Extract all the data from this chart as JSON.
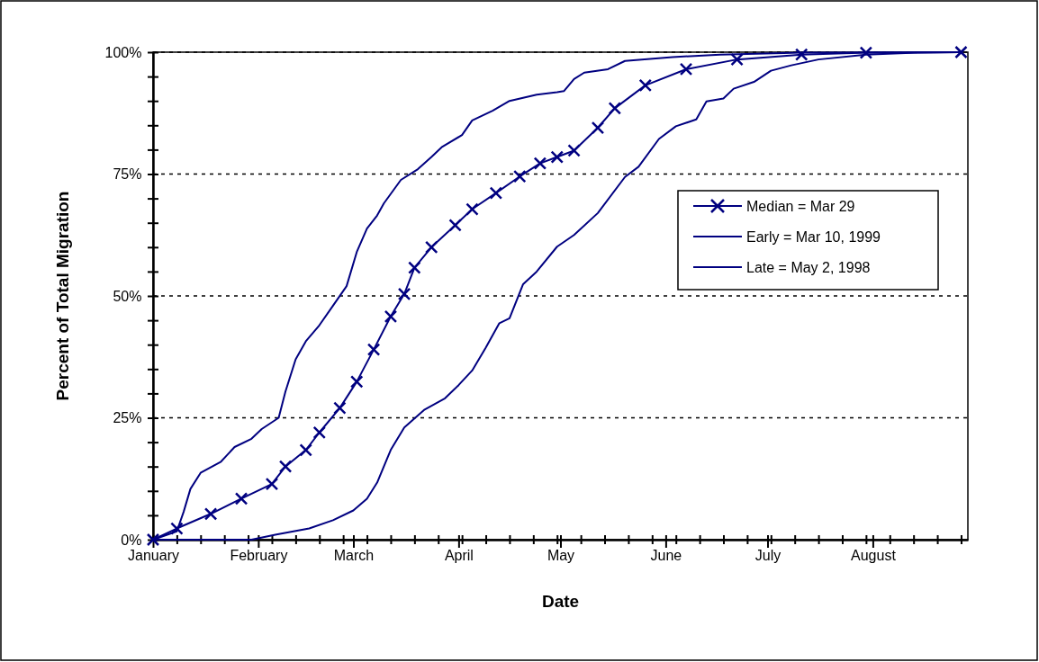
{
  "chart_data": {
    "type": "line",
    "xlabel": "Date",
    "ylabel": "Percent of Total Migration",
    "xlim": [
      "--01-01",
      "--08-29"
    ],
    "ylim": [
      0,
      100
    ],
    "xticks": [
      {
        "value": "--01-01",
        "label": "January"
      },
      {
        "value": "--01-08",
        "label": null
      },
      {
        "value": "--01-15",
        "label": null
      },
      {
        "value": "--01-22",
        "label": null
      },
      {
        "value": "--01-29",
        "label": null
      },
      {
        "value": "--02-01",
        "label": "February"
      },
      {
        "value": "--02-05",
        "label": null
      },
      {
        "value": "--02-12",
        "label": null
      },
      {
        "value": "--02-19",
        "label": null
      },
      {
        "value": "--02-26",
        "label": null
      },
      {
        "value": "--03-01",
        "label": "March"
      },
      {
        "value": "--03-05",
        "label": null
      },
      {
        "value": "--03-12",
        "label": null
      },
      {
        "value": "--03-19",
        "label": null
      },
      {
        "value": "--03-26",
        "label": null
      },
      {
        "value": "--04-01",
        "label": "April"
      },
      {
        "value": "--04-02",
        "label": null
      },
      {
        "value": "--04-09",
        "label": null
      },
      {
        "value": "--04-16",
        "label": null
      },
      {
        "value": "--04-23",
        "label": null
      },
      {
        "value": "--04-30",
        "label": null
      },
      {
        "value": "--05-01",
        "label": "May"
      },
      {
        "value": "--05-07",
        "label": null
      },
      {
        "value": "--05-14",
        "label": null
      },
      {
        "value": "--05-21",
        "label": null
      },
      {
        "value": "--05-28",
        "label": null
      },
      {
        "value": "--06-01",
        "label": "June"
      },
      {
        "value": "--06-04",
        "label": null
      },
      {
        "value": "--06-11",
        "label": null
      },
      {
        "value": "--06-18",
        "label": null
      },
      {
        "value": "--06-25",
        "label": null
      },
      {
        "value": "--07-01",
        "label": "July"
      },
      {
        "value": "--07-02",
        "label": null
      },
      {
        "value": "--07-09",
        "label": null
      },
      {
        "value": "--07-16",
        "label": null
      },
      {
        "value": "--07-23",
        "label": null
      },
      {
        "value": "--07-30",
        "label": null
      },
      {
        "value": "--08-01",
        "label": "August"
      },
      {
        "value": "--08-06",
        "label": null
      },
      {
        "value": "--08-13",
        "label": null
      },
      {
        "value": "--08-20",
        "label": null
      },
      {
        "value": "--08-27",
        "label": null
      }
    ],
    "yticks": [
      {
        "value": 0,
        "label": "0%"
      },
      {
        "value": 5,
        "label": null
      },
      {
        "value": 10,
        "label": null
      },
      {
        "value": 15,
        "label": null
      },
      {
        "value": 20,
        "label": null
      },
      {
        "value": 25,
        "label": "25%"
      },
      {
        "value": 30,
        "label": null
      },
      {
        "value": 35,
        "label": null
      },
      {
        "value": 40,
        "label": null
      },
      {
        "value": 45,
        "label": null
      },
      {
        "value": 50,
        "label": "50%"
      },
      {
        "value": 55,
        "label": null
      },
      {
        "value": 60,
        "label": null
      },
      {
        "value": 65,
        "label": null
      },
      {
        "value": 70,
        "label": null
      },
      {
        "value": 75,
        "label": "75%"
      },
      {
        "value": 80,
        "label": null
      },
      {
        "value": 85,
        "label": null
      },
      {
        "value": 90,
        "label": null
      },
      {
        "value": 95,
        "label": null
      },
      {
        "value": 100,
        "label": "100%"
      }
    ],
    "grid": "y",
    "legend": "right",
    "line_style": "solid",
    "series": [
      {
        "name": "Median = Mar 29",
        "color": "#000080",
        "marker": "cross",
        "x": [
          "--01-01",
          "--01-08",
          "--01-18",
          "--01-27",
          "--02-05",
          "--02-09",
          "--02-15",
          "--02-19",
          "--02-25",
          "--03-02",
          "--03-07",
          "--03-12",
          "--03-16",
          "--03-19",
          "--03-24",
          "--03-31",
          "--04-05",
          "--04-12",
          "--04-19",
          "--04-25",
          "--04-30",
          "--05-05",
          "--05-12",
          "--05-17",
          "--05-26",
          "--06-07",
          "--06-22",
          "--07-11",
          "--07-30",
          "--08-27"
        ],
        "values": [
          0,
          2.3,
          5.3,
          8.4,
          11.4,
          15,
          18.4,
          22,
          27,
          32.4,
          39,
          45.8,
          50.4,
          55.8,
          60,
          64.5,
          67.8,
          71.1,
          74.5,
          77.2,
          78.5,
          79.8,
          84.5,
          88.5,
          93.2,
          96.5,
          98.5,
          99.5,
          99.9,
          100
        ]
      },
      {
        "name": "Early = Mar 10, 1999",
        "color": "#000080",
        "marker": "none",
        "x": [
          "--01-01",
          "--01-08",
          "--01-10",
          "--01-12",
          "--01-15",
          "--01-21",
          "--01-25",
          "--01-30",
          "--02-02",
          "--02-07",
          "--02-09",
          "--02-12",
          "--02-15",
          "--02-19",
          "--02-23",
          "--02-27",
          "--03-02",
          "--03-05",
          "--03-08",
          "--03-10",
          "--03-15",
          "--03-20",
          "--03-24",
          "--03-27",
          "--04-02",
          "--04-05",
          "--04-11",
          "--04-16",
          "--04-24",
          "--04-30",
          "--05-02",
          "--05-05",
          "--05-08",
          "--05-15",
          "--05-20",
          "--06-03",
          "--06-17",
          "--07-11",
          "--08-27"
        ],
        "values": [
          0,
          1.7,
          5.7,
          10.4,
          13.7,
          16,
          19,
          20.7,
          22.7,
          25,
          30.4,
          37,
          40.7,
          44,
          48,
          52,
          59,
          63.8,
          66.5,
          69,
          73.8,
          76,
          78.5,
          80.5,
          83,
          86,
          88,
          90,
          91.3,
          91.8,
          92,
          94.5,
          95.8,
          96.5,
          98.2,
          99,
          99.5,
          99.9,
          100
        ]
      },
      {
        "name": "Late = May 2, 1998",
        "color": "#000080",
        "marker": "none",
        "x": [
          "--01-01",
          "--01-30",
          "--02-06",
          "--02-16",
          "--02-23",
          "--03-01",
          "--03-05",
          "--03-08",
          "--03-12",
          "--03-16",
          "--03-22",
          "--03-28",
          "--04-01",
          "--04-05",
          "--04-09",
          "--04-13",
          "--04-16",
          "--04-20",
          "--04-24",
          "--04-30",
          "--05-05",
          "--05-12",
          "--05-20",
          "--05-24",
          "--05-30",
          "--06-04",
          "--06-10",
          "--06-13",
          "--06-18",
          "--06-21",
          "--06-27",
          "--07-02",
          "--07-08",
          "--07-16",
          "--07-30",
          "--08-14",
          "--08-27"
        ],
        "values": [
          0,
          0,
          1,
          2.3,
          4,
          6,
          8.4,
          11.7,
          18.4,
          23,
          26.7,
          29,
          31.7,
          34.7,
          39.4,
          44.4,
          45.4,
          52.4,
          55,
          60.1,
          62.5,
          67,
          74.4,
          76.5,
          82.2,
          84.8,
          86.2,
          89.9,
          90.5,
          92.5,
          93.9,
          96.2,
          97.3,
          98.5,
          99.5,
          99.9,
          100
        ]
      }
    ]
  }
}
